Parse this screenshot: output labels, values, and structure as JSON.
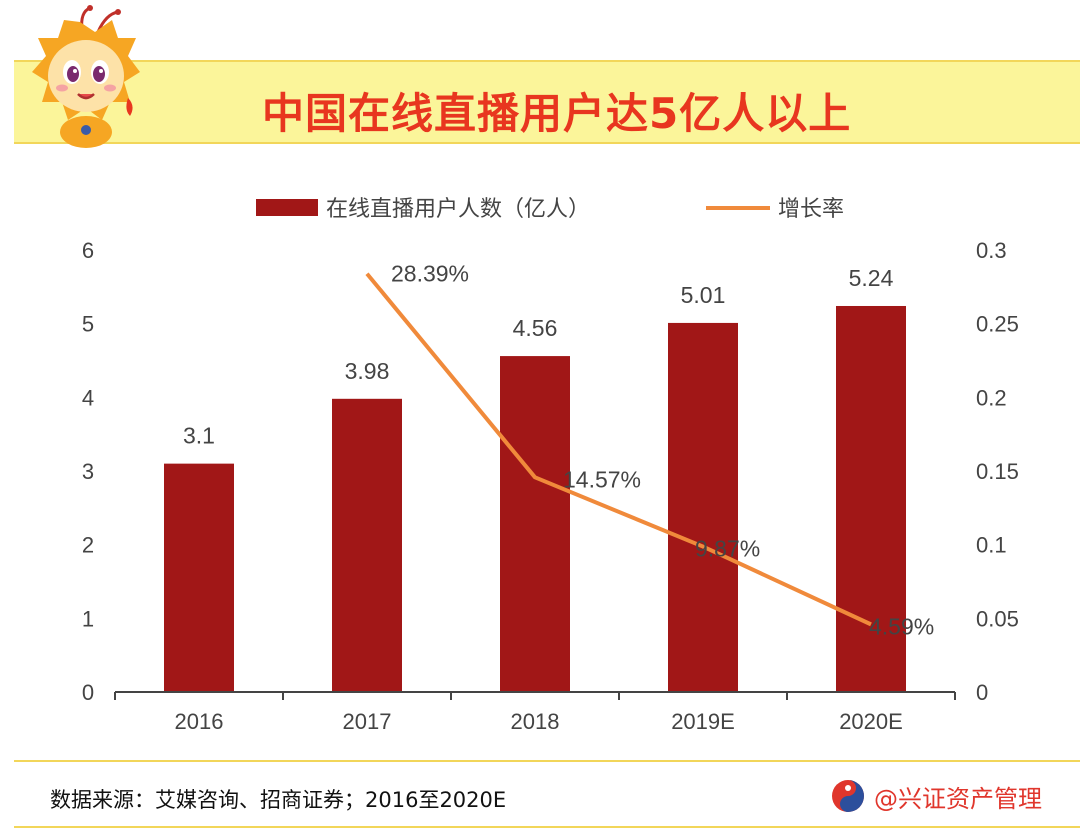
{
  "header": {
    "title": "中国在线直播用户达5亿人以上"
  },
  "chart_data": {
    "type": "bar",
    "categories": [
      "2016",
      "2017",
      "2018",
      "2019E",
      "2020E"
    ],
    "series": [
      {
        "name": "在线直播用户人数（亿人）",
        "type": "bar",
        "axis": "left",
        "values": [
          3.1,
          3.98,
          4.56,
          5.01,
          5.24
        ],
        "labels": [
          "3.1",
          "3.98",
          "4.56",
          "5.01",
          "5.24"
        ],
        "color": "#a11717"
      },
      {
        "name": "增长率",
        "type": "line",
        "axis": "right",
        "values": [
          null,
          0.2839,
          0.1457,
          0.0987,
          0.0459
        ],
        "labels": [
          "",
          "28.39%",
          "14.57%",
          "9.87%",
          "4.59%"
        ],
        "color": "#f08a3b"
      }
    ],
    "y_left": {
      "min": 0,
      "max": 6,
      "ticks": [
        "0",
        "1",
        "2",
        "3",
        "4",
        "5",
        "6"
      ]
    },
    "y_right": {
      "min": 0,
      "max": 0.3,
      "ticks": [
        "0",
        "0.05",
        "0.1",
        "0.15",
        "0.2",
        "0.25",
        "0.3"
      ]
    },
    "legend": {
      "position": "top"
    }
  },
  "footer": {
    "source": "数据来源：艾媒咨询、招商证券；2016至2020E",
    "brand": "@兴证资产管理"
  }
}
